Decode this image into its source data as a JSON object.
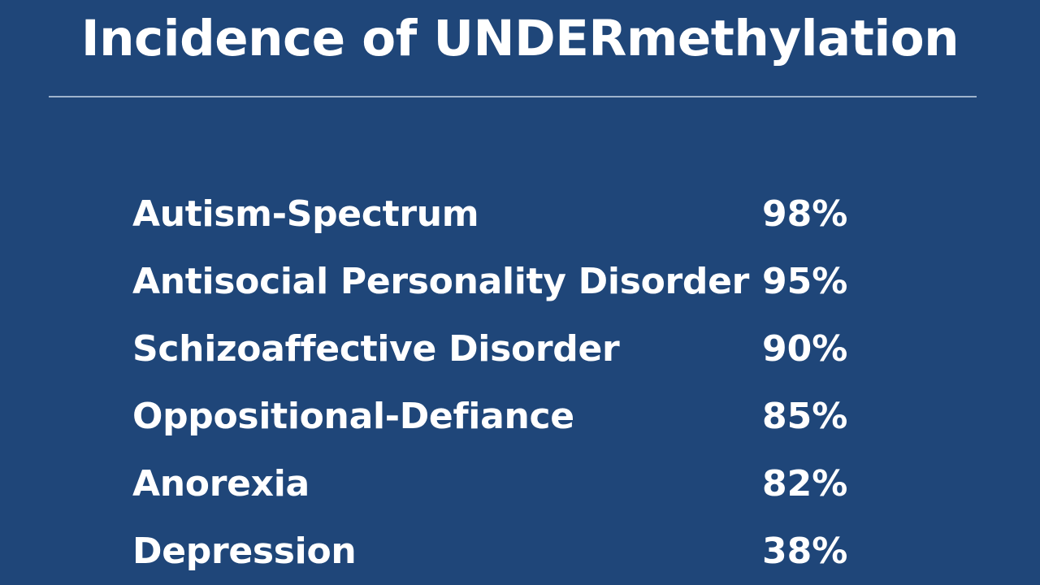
{
  "slide": {
    "title": "Incidence of UNDERmethylation",
    "rows": [
      {
        "label": "Autism-Spectrum",
        "value": "98%"
      },
      {
        "label": "Antisocial Personality Disorder",
        "value": "95%"
      },
      {
        "label": "Schizoaffective Disorder",
        "value": "90%"
      },
      {
        "label": "Oppositional-Defiance",
        "value": "85%"
      },
      {
        "label": "Anorexia",
        "value": "82%"
      },
      {
        "label": "Depression",
        "value": "38%"
      }
    ]
  },
  "colors": {
    "background": "#1f4679",
    "text": "#ffffff",
    "divider": "#9fb3cc"
  }
}
